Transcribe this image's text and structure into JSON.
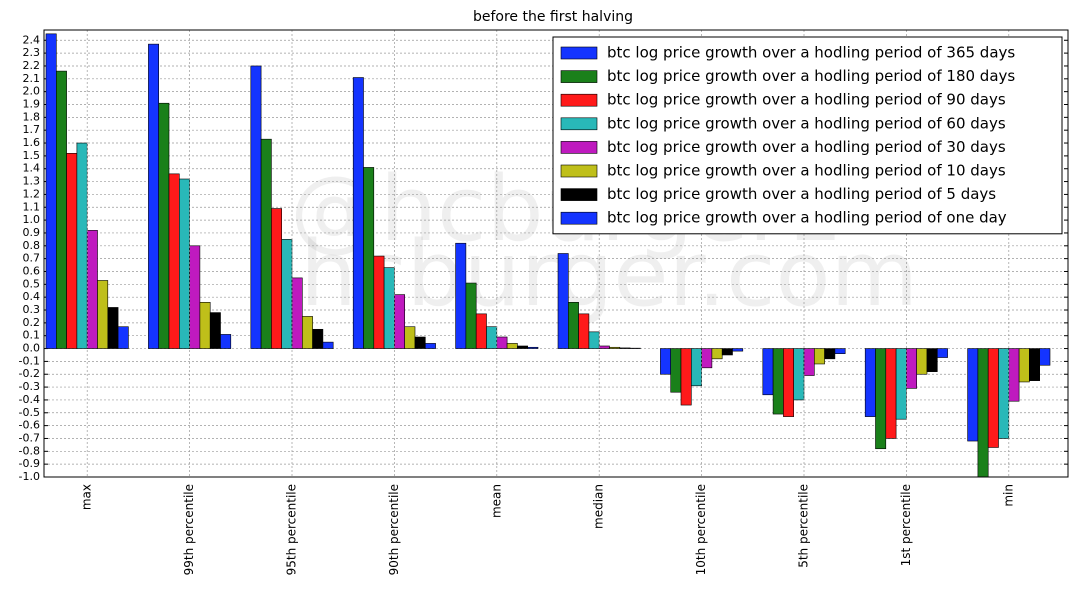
{
  "chart_data": {
    "type": "bar",
    "title": "before the first halving",
    "categories": [
      "max",
      "99th percentile",
      "95th percentile",
      "90th percentile",
      "mean",
      "median",
      "10th percentile",
      "5th percentile",
      "1st percentile",
      "min"
    ],
    "series": [
      {
        "name": "btc log price growth over a hodling period of 365 days",
        "color": "#1434ff",
        "values": [
          2.45,
          2.37,
          2.2,
          2.11,
          0.82,
          0.74,
          -0.2,
          -0.36,
          -0.53,
          -0.72
        ]
      },
      {
        "name": "btc log price growth over a hodling period of 180 days",
        "color": "#1a801a",
        "values": [
          2.16,
          1.91,
          1.63,
          1.41,
          0.51,
          0.36,
          -0.34,
          -0.51,
          -0.78,
          -1.0
        ]
      },
      {
        "name": "btc log price growth over a hodling period of 90 days",
        "color": "#ff1a1a",
        "values": [
          1.52,
          1.36,
          1.09,
          0.72,
          0.27,
          0.27,
          -0.44,
          -0.53,
          -0.7,
          -0.77
        ]
      },
      {
        "name": "btc log price growth over a hodling period of 60 days",
        "color": "#29b8b8",
        "values": [
          1.6,
          1.32,
          0.85,
          0.63,
          0.17,
          0.13,
          -0.29,
          -0.4,
          -0.55,
          -0.7
        ]
      },
      {
        "name": "btc log price growth over a hodling period of 30 days",
        "color": "#bf1abf",
        "values": [
          0.92,
          0.8,
          0.55,
          0.42,
          0.09,
          0.02,
          -0.15,
          -0.21,
          -0.31,
          -0.41
        ]
      },
      {
        "name": "btc log price growth over a hodling period of 10 days",
        "color": "#bfbf1a",
        "values": [
          0.53,
          0.36,
          0.25,
          0.17,
          0.04,
          0.01,
          -0.08,
          -0.12,
          -0.2,
          -0.26
        ]
      },
      {
        "name": "btc log price growth over a hodling period of 5 days",
        "color": "#000000",
        "values": [
          0.32,
          0.28,
          0.15,
          0.09,
          0.02,
          0.005,
          -0.05,
          -0.08,
          -0.18,
          -0.25
        ]
      },
      {
        "name": "btc log price growth over a hodling period of one day",
        "color": "#1434ff",
        "values": [
          0.17,
          0.11,
          0.05,
          0.04,
          0.01,
          0.003,
          -0.02,
          -0.04,
          -0.07,
          -0.13
        ]
      }
    ],
    "ylim": [
      -1.0,
      2.48
    ],
    "yticks": [
      {
        "value": -1,
        "label": "-1.0"
      },
      -0.9,
      -0.8,
      -0.7,
      -0.6,
      -0.5,
      -0.4,
      -0.3,
      -0.2,
      -0.1,
      {
        "value": 0,
        "label": "0.0"
      },
      0.1,
      0.2,
      0.3,
      0.4,
      0.5,
      0.6,
      0.7,
      0.8,
      0.9,
      {
        "value": 1,
        "label": "1.0"
      },
      1.1,
      1.2,
      1.3,
      1.4,
      1.5,
      1.6,
      1.7,
      1.8,
      1.9,
      {
        "value": 2,
        "label": "2.0"
      },
      2.1,
      2.2,
      2.3,
      2.4
    ],
    "grid": true,
    "legend": "upper right",
    "watermark": [
      "@hcburger1",
      "hcburger.com"
    ]
  }
}
